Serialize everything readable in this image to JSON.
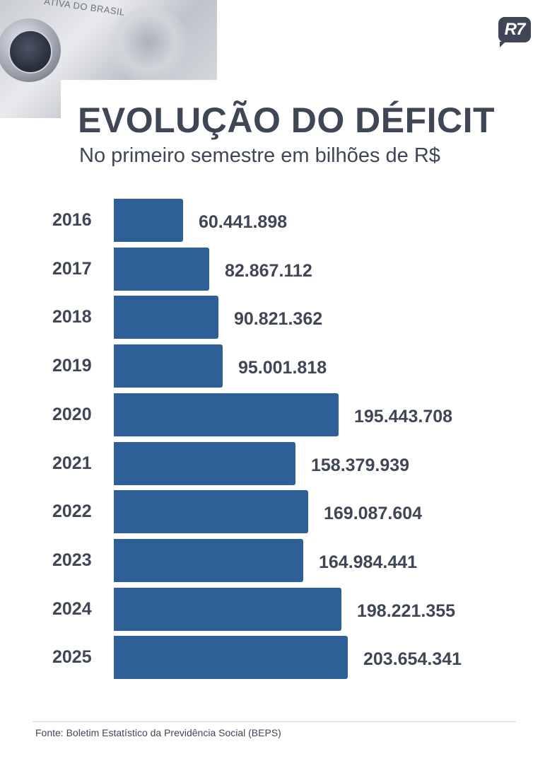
{
  "photo": {
    "note_text": "ATIVA DO BRASIL"
  },
  "brand": {
    "logo_text": "R7"
  },
  "colors": {
    "bar": "#2e5f96",
    "text": "#3f4756"
  },
  "chart_data": {
    "type": "bar",
    "orientation": "horizontal",
    "title": "EVOLUÇÃO DO DÉFICIT",
    "subtitle": "No primeiro semestre em bilhões de R$",
    "categories": [
      "2016",
      "2017",
      "2018",
      "2019",
      "2020",
      "2021",
      "2022",
      "2023",
      "2024",
      "2025"
    ],
    "values": [
      60441898,
      82867112,
      90821362,
      95001818,
      195443708,
      158379939,
      169087604,
      164984441,
      198221355,
      203654341
    ],
    "value_labels": [
      "60.441.898",
      "82.867.112",
      "90.821.362",
      "95.001.818",
      "195.443.708",
      "158.379.939",
      "169.087.604",
      "164.984.441",
      "198.221.355",
      "203.654.341"
    ],
    "grid": false,
    "legend": "none"
  },
  "source": "Fonte: Boletim Estatístico da Previdência Social (BEPS)"
}
